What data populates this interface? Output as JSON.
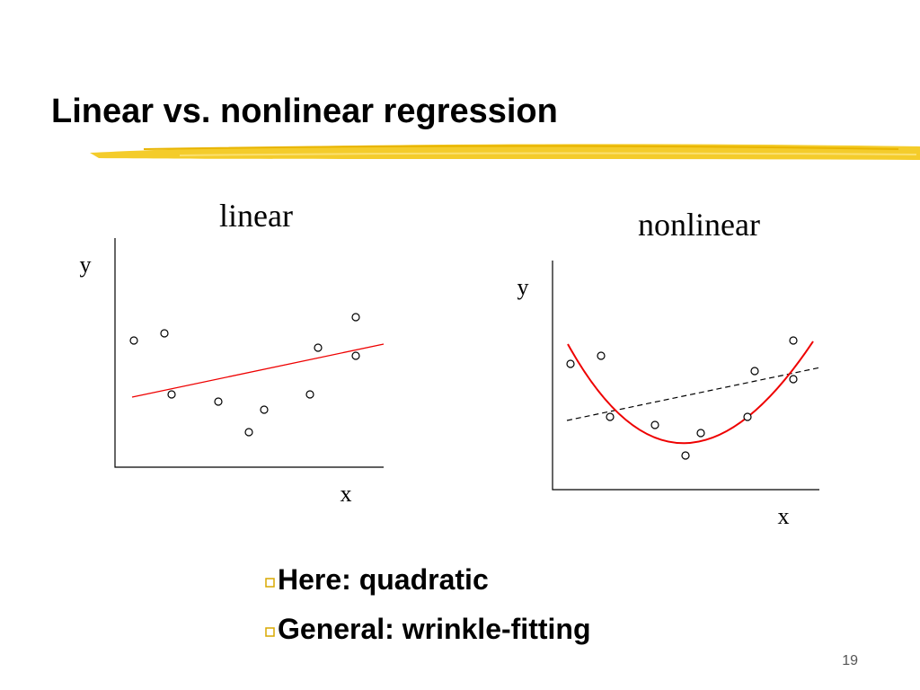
{
  "header": {
    "title": "Linear vs. nonlinear regression"
  },
  "plots": [
    {
      "label": "linear",
      "y_label": "y",
      "x_label": "x"
    },
    {
      "label": "nonlinear",
      "y_label": "y",
      "x_label": "x"
    }
  ],
  "bullets": [
    "Here: quadratic",
    "General: wrinkle-fitting"
  ],
  "page_number": "19"
}
